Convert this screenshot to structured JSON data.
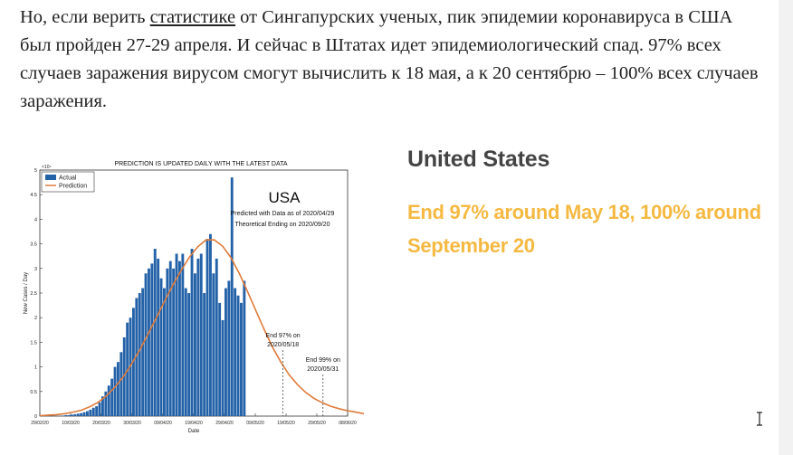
{
  "article": {
    "text_before": "Но, если верить ",
    "link_text": "статистике",
    "text_after": " от Сингапурских ученых, пик эпидемии коронавируса в США был пройден 27-29 апреля. И сейчас в Штатах идет эпидемиологический спад. 97% всех случаев заражения вирусом смогут вычислить к 18 мая, а к 20 сентябрю – 100% всех случаев заражения."
  },
  "figure": {
    "side_title": "United States",
    "side_subtitle": "End 97% around May 18, 100% around September 20",
    "colors": {
      "title": "#444444",
      "subtitle": "#f5b942"
    }
  },
  "chart_data": {
    "type": "bar",
    "title": "PREDICTION IS UPDATED DAILY WITH THE LATEST DATA",
    "xlabel": "Date",
    "ylabel": "New Cases / Day",
    "y_multiplier_label": "×10⁴",
    "ylim": [
      0,
      5
    ],
    "yticks": [
      0,
      0.5,
      1,
      1.5,
      2,
      2.5,
      3,
      3.5,
      4,
      4.5,
      5
    ],
    "xlim": [
      "29/02/20",
      "08/06/20"
    ],
    "xticks": [
      "29/02/20",
      "10/03/20",
      "20/03/20",
      "30/03/20",
      "09/04/20",
      "19/04/20",
      "29/04/20",
      "09/05/20",
      "19/05/20",
      "29/05/20",
      "08/06/20"
    ],
    "legend": {
      "position": "top-left",
      "entries": [
        "Actual",
        "Prediction"
      ]
    },
    "big_label": "USA",
    "annotation_lines": [
      "Predicted with Data as of 2020/04/29",
      "Theoretical Ending on 2020/09/20"
    ],
    "markers": [
      {
        "label_line1": "End 97% on",
        "label_line2": "2020/05/18",
        "x_day": 79
      },
      {
        "label_line1": "End 99% on",
        "label_line2": "2020/05/31",
        "x_day": 92
      }
    ],
    "series": [
      {
        "name": "Actual",
        "start_day": 0,
        "values": [
          0,
          0,
          0,
          0,
          0,
          0,
          0,
          0.01,
          0.02,
          0.02,
          0.03,
          0.04,
          0.05,
          0.06,
          0.08,
          0.1,
          0.13,
          0.17,
          0.2,
          0.28,
          0.4,
          0.5,
          0.62,
          0.76,
          1.0,
          1.1,
          1.3,
          1.6,
          1.9,
          2.0,
          2.2,
          2.4,
          2.5,
          2.6,
          2.9,
          3.0,
          3.1,
          3.4,
          3.2,
          2.8,
          2.6,
          3.0,
          3.15,
          3.0,
          3.3,
          3.15,
          3.3,
          2.6,
          2.5,
          3.4,
          2.9,
          3.2,
          3.3,
          2.5,
          3.6,
          3.7,
          2.9,
          3.2,
          2.3,
          1.95,
          2.6,
          2.75,
          4.85,
          2.6,
          2.45,
          2.3,
          2.75
        ]
      },
      {
        "name": "Prediction",
        "start_day": 0,
        "values": [
          0.01,
          0.02,
          0.03,
          0.05,
          0.08,
          0.12,
          0.19,
          0.28,
          0.41,
          0.58,
          0.79,
          1.05,
          1.34,
          1.66,
          1.99,
          2.33,
          2.66,
          2.96,
          3.23,
          3.44,
          3.58,
          3.58,
          3.45,
          3.22,
          2.9,
          2.53,
          2.14,
          1.76,
          1.4,
          1.1,
          0.84,
          0.64,
          0.48,
          0.36,
          0.27,
          0.2,
          0.15,
          0.11,
          0.08,
          0.05
        ],
        "step_days": 2.7
      }
    ]
  }
}
